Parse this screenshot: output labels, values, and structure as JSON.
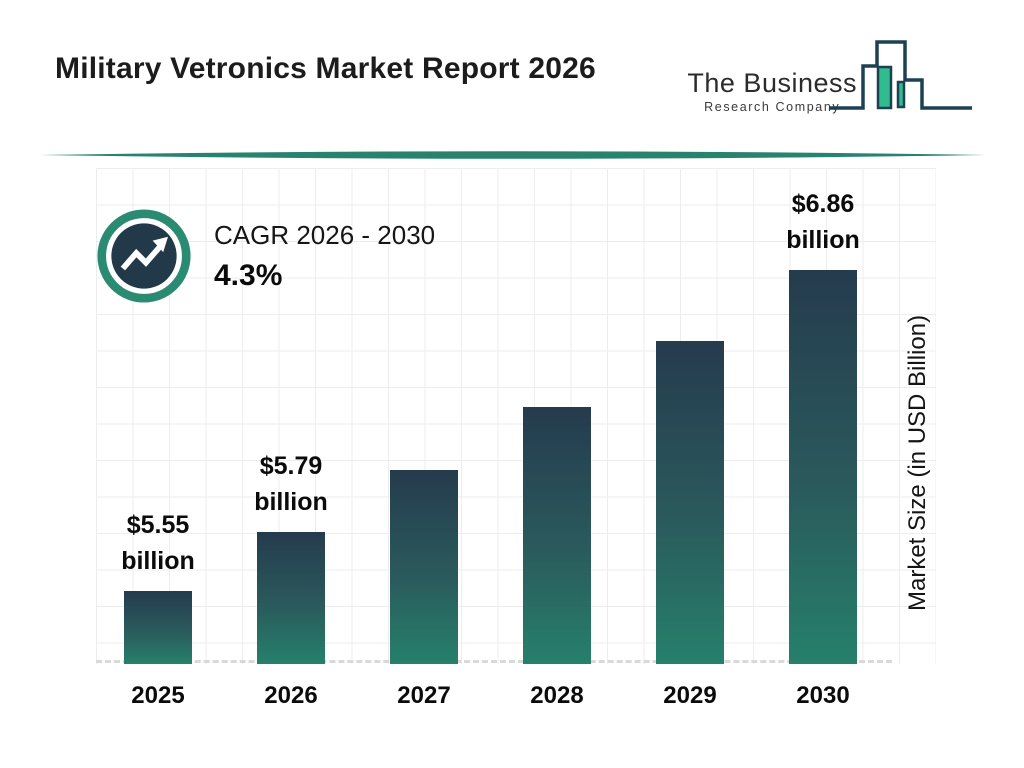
{
  "header": {
    "title": "Military Vetronics Market Report 2026"
  },
  "logo": {
    "name": "The Business",
    "tagline": "Research Company"
  },
  "cagr": {
    "label": "CAGR 2026 - 2030",
    "value": "4.3%"
  },
  "chart_data": {
    "type": "bar",
    "title": "Military Vetronics Market Report 2026",
    "categories": [
      "2025",
      "2026",
      "2027",
      "2028",
      "2029",
      "2030"
    ],
    "values": [
      5.55,
      5.79,
      6.04,
      6.3,
      6.57,
      6.86
    ],
    "values_estimated": [
      false,
      false,
      true,
      true,
      true,
      false
    ],
    "bar_labels": [
      "$5.55 billion",
      "$5.79 billion",
      null,
      null,
      null,
      "$6.86 billion"
    ],
    "xlabel": "",
    "ylabel": "Market Size (in USD Billion)",
    "ylim": [
      5.25,
      7.25
    ],
    "grid": true,
    "legend": "none",
    "unit": "USD Billion",
    "colors": {
      "bar_gradient_top": "#253b4e",
      "bar_gradient_bottom": "#26806b",
      "accent_teal": "#27836e",
      "badge_ring": "#2b8a72",
      "badge_inner": "#213949",
      "logo_green": "#2fbc8e",
      "logo_navy": "#1d4053",
      "grid_line": "#ededed",
      "baseline_dash": "#d9d9d9",
      "text": "#111111"
    }
  }
}
